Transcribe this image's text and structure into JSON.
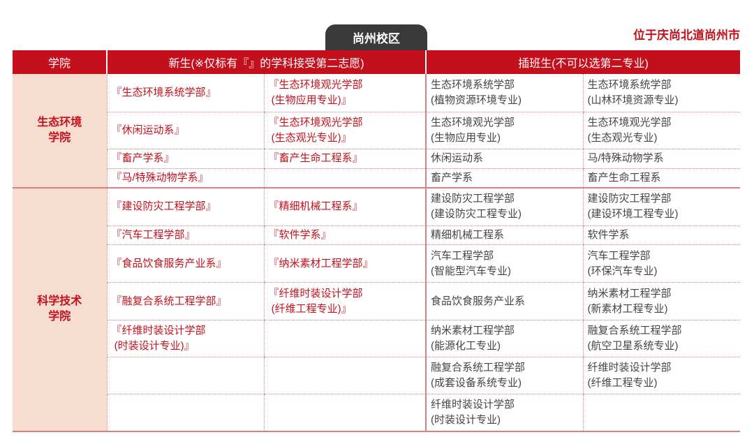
{
  "campus_tab": "尚州校区",
  "location": "位于庆尚北道尚州市",
  "colors": {
    "header_red": "#c4101c",
    "college_bg": "#f7dcd0",
    "tab_dark": "#3a3a3a"
  },
  "headers": {
    "college": "学院",
    "freshman": "新生(※仅标有『』的学科接受第二志愿)",
    "transfer": "插班生(不可以选第二专业)"
  },
  "groups": [
    {
      "college": "生态环境\n学院",
      "rows": [
        {
          "new1": "『生态环境系统学部』",
          "new2": "『生态环境观光学部\n (生物应用专业)』",
          "tr1": "生态环境系统学部\n(植物资源环境专业)",
          "tr2": "生态环境系统学部\n(山林环境资源专业)",
          "h": 54
        },
        {
          "new1": "『休闲运动系』",
          "new2": "『生态环境观光学部\n (生态观光专业)』",
          "tr1": "生态环境观光学部\n(生物应用专业)",
          "tr2": "生态环境观光学部\n(生态观光专业)",
          "h": 53
        },
        {
          "new1": "『畜产学系』",
          "new2": "『畜产生命工程系』",
          "tr1": "休闲运动系",
          "tr2": "马/特殊动物学系",
          "h": 28
        },
        {
          "new1": "『马/特殊动物学系』",
          "new2": "",
          "tr1": "畜产学系",
          "tr2": "畜产生命工程系",
          "h": 27
        }
      ]
    },
    {
      "college": "科学技术\n学院",
      "rows": [
        {
          "new1": "『建设防灾工程学部』",
          "new2": "『精细机械工程系』",
          "tr1": "建设防灾工程学部\n(建设防灾工程专业)",
          "tr2": "建设防灾工程学部\n(建设环境工程专业)",
          "h": 55
        },
        {
          "new1": "『汽车工程学部』",
          "new2": "『软件学系』",
          "tr1": "精细机械工程系",
          "tr2": "软件学系",
          "h": 27
        },
        {
          "new1": "『食品饮食服务产业系』",
          "new2": "『纳米素材工程学部』",
          "tr1": "汽车工程学部\n(智能型汽车专业)",
          "tr2": "汽车工程学部\n(环保汽车专业)",
          "h": 54
        },
        {
          "new1": "『融复合系统工程学部』",
          "new2": "『纤维时装设计学部\n (纤维工程专业)』",
          "tr1": "食品饮食服务产业系",
          "tr2": "纳米素材工程学部\n(新素材工程专业)",
          "h": 54
        },
        {
          "new1": "『纤维时装设计学部\n (时装设计专业)』",
          "new2": "",
          "tr1": "纳米素材工程学部\n(能源化工专业)",
          "tr2": "融复合系统工程学部\n(航空卫星系统专业)",
          "h": 53
        },
        {
          "new1": "",
          "new2": "",
          "tr1": "融复合系统工程学部\n(成套设备系统专业)",
          "tr2": "纤维时装设计学部\n(纤维工程专业)",
          "h": 53
        },
        {
          "new1": "",
          "new2": "",
          "tr1": "纤维时装设计学部\n(时装设计专业)",
          "tr2": "",
          "h": 53
        }
      ]
    }
  ]
}
